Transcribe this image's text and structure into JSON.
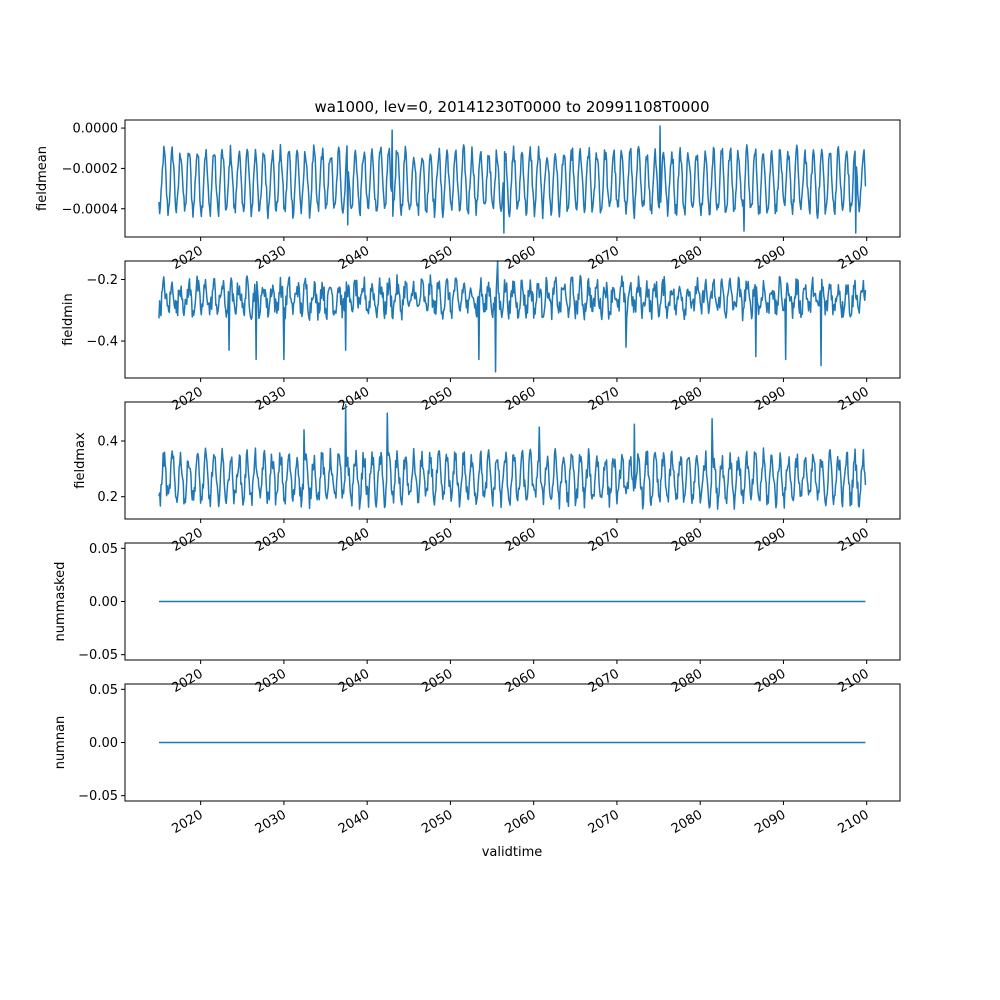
{
  "chart_data": {
    "type": "line",
    "title": "wa1000, lev=0, 20141230T0000 to 20991108T0000",
    "xlabel": "validtime",
    "x_start": "2014-12-30",
    "x_end": "2099-11-08",
    "xlim": [
      "2010-12-01",
      "2104-01-01"
    ],
    "x_tick_labels": [
      "2020",
      "2030",
      "2040",
      "2050",
      "2060",
      "2070",
      "2080",
      "2090",
      "2100"
    ],
    "x_tick_labels_rotated": true,
    "color": "#1f77b4",
    "grid": false,
    "panels": [
      {
        "ylabel": "fieldmean",
        "ylim": [
          -0.00054,
          4e-05
        ],
        "y_ticks": [
          0,
          -0.0002,
          -0.0004
        ],
        "y_tick_labels": [
          "0.0000",
          "−0.0002",
          "−0.0004"
        ],
        "baseline": -0.00041,
        "peak": -0.00012,
        "noise": 4e-05,
        "extremes": [
          [
            "2075-03-01",
            1e-05
          ],
          [
            "2056-06-01",
            -0.00052
          ],
          [
            "2037-09-01",
            -0.00048
          ],
          [
            "2098-09-01",
            -0.00052
          ],
          [
            "2043-01-01",
            -1e-05
          ],
          [
            "2085-04-01",
            -0.00051
          ]
        ]
      },
      {
        "ylabel": "fieldmin",
        "ylim": [
          -0.52,
          -0.14
        ],
        "y_ticks": [
          -0.2,
          -0.4
        ],
        "y_tick_labels": [
          "−0.2",
          "−0.4"
        ],
        "baseline": -0.3,
        "peak": -0.22,
        "noise": 0.035,
        "extremes": [
          [
            "2055-06-01",
            -0.5
          ],
          [
            "2055-09-01",
            -0.14
          ],
          [
            "2037-06-01",
            -0.43
          ],
          [
            "2026-09-01",
            -0.46
          ],
          [
            "2030-01-01",
            -0.46
          ],
          [
            "2086-09-01",
            -0.45
          ],
          [
            "2090-04-01",
            -0.46
          ],
          [
            "2094-07-01",
            -0.48
          ],
          [
            "2071-02-01",
            -0.42
          ],
          [
            "2023-06-01",
            -0.43
          ],
          [
            "2053-06-01",
            -0.46
          ]
        ]
      },
      {
        "ylabel": "fieldmax",
        "ylim": [
          0.12,
          0.54
        ],
        "y_ticks": [
          0.4,
          0.2
        ],
        "y_tick_labels": [
          "0.4",
          "0.2"
        ],
        "baseline": 0.19,
        "peak": 0.34,
        "noise": 0.035,
        "extremes": [
          [
            "2037-06-01",
            0.53
          ],
          [
            "2042-06-01",
            0.5
          ],
          [
            "2081-06-01",
            0.48
          ],
          [
            "2032-06-01",
            0.44
          ],
          [
            "2072-02-01",
            0.46
          ],
          [
            "2060-09-01",
            0.45
          ]
        ]
      },
      {
        "ylabel": "nummasked",
        "ylim": [
          -0.055,
          0.055
        ],
        "y_ticks": [
          0.05,
          0.0,
          -0.05
        ],
        "y_tick_labels": [
          "0.05",
          "0.00",
          "−0.05"
        ],
        "constant": 0.0
      },
      {
        "ylabel": "numnan",
        "ylim": [
          -0.055,
          0.055
        ],
        "y_ticks": [
          0.05,
          0.0,
          -0.05
        ],
        "y_tick_labels": [
          "0.05",
          "0.00",
          "−0.05"
        ],
        "constant": 0.0
      }
    ]
  }
}
